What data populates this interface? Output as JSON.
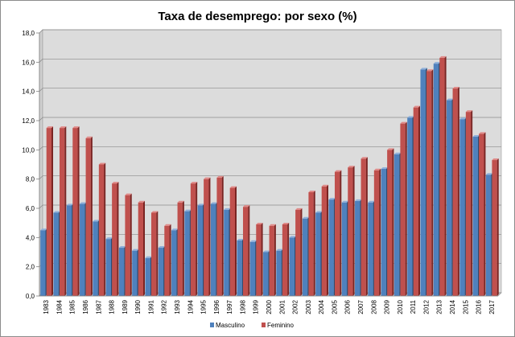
{
  "chart_data": {
    "type": "bar",
    "title": "Taxa de desemprego: por sexo (%)",
    "xlabel": "",
    "ylabel": "",
    "ylim": [
      0,
      18
    ],
    "yticks": [
      "0,0",
      "2,0",
      "4,0",
      "6,0",
      "8,0",
      "10,0",
      "12,0",
      "14,0",
      "16,0",
      "18,0"
    ],
    "grid": true,
    "legend_position": "bottom",
    "categories": [
      "1983",
      "1984",
      "1985",
      "1986",
      "1987",
      "1988",
      "1989",
      "1990",
      "1991",
      "1992",
      "1993",
      "1994",
      "1995",
      "1996",
      "1997",
      "1998",
      "1999",
      "2000",
      "2001",
      "2002",
      "2003",
      "2004",
      "2005",
      "2006",
      "2007",
      "2008",
      "2009",
      "2010",
      "2011",
      "2012",
      "2013",
      "2014",
      "2015",
      "2016",
      "2017"
    ],
    "series": [
      {
        "name": "Masculino",
        "color": "#4f81bd",
        "values": [
          4.5,
          5.7,
          6.2,
          6.3,
          5.1,
          3.9,
          3.3,
          3.1,
          2.6,
          3.3,
          4.5,
          5.8,
          6.2,
          6.3,
          5.9,
          3.8,
          3.7,
          3.0,
          3.1,
          4.0,
          5.3,
          5.7,
          6.6,
          6.4,
          6.5,
          6.4,
          8.7,
          9.7,
          12.2,
          15.5,
          15.9,
          13.4,
          12.1,
          10.9,
          8.3
        ]
      },
      {
        "name": "Feminino",
        "color": "#c0504d",
        "values": [
          11.5,
          11.5,
          11.5,
          10.8,
          9.0,
          7.7,
          6.9,
          6.4,
          5.7,
          4.8,
          6.4,
          7.7,
          8.0,
          8.1,
          7.4,
          6.1,
          4.9,
          4.8,
          4.9,
          5.9,
          7.1,
          7.5,
          8.5,
          8.8,
          9.4,
          8.6,
          10.0,
          11.8,
          12.9,
          15.4,
          16.3,
          14.2,
          12.6,
          11.1,
          9.3
        ]
      }
    ]
  }
}
